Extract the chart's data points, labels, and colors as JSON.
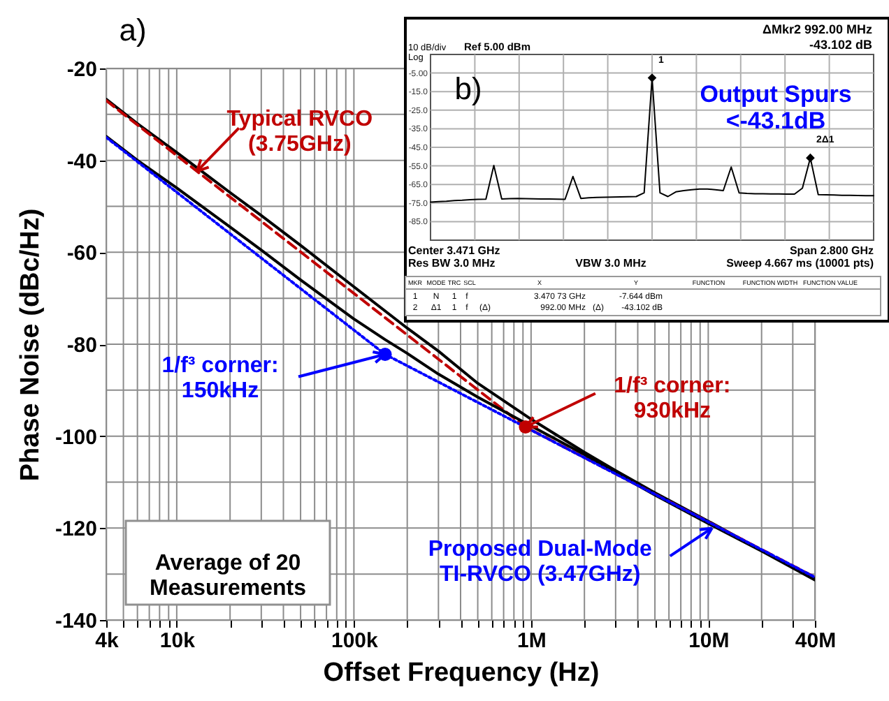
{
  "chart_data": [
    {
      "type": "line",
      "xlabel": "Offset Frequency (Hz)",
      "ylabel": "Phase Noise (dBc/Hz)",
      "log": "x",
      "grid": true,
      "xlim": [
        4000,
        40000000
      ],
      "xticks": [
        {
          "value": 4000,
          "label": "4k"
        },
        {
          "value": 5000,
          "label": null
        },
        {
          "value": 6000,
          "label": null
        },
        {
          "value": 7000,
          "label": null
        },
        {
          "value": 8000,
          "label": null
        },
        {
          "value": 9000,
          "label": null
        },
        {
          "value": 10000,
          "label": "10k"
        },
        {
          "value": 20000,
          "label": null
        },
        {
          "value": 30000,
          "label": null
        },
        {
          "value": 40000,
          "label": null
        },
        {
          "value": 50000,
          "label": null
        },
        {
          "value": 60000,
          "label": null
        },
        {
          "value": 70000,
          "label": null
        },
        {
          "value": 80000,
          "label": null
        },
        {
          "value": 90000,
          "label": null
        },
        {
          "value": 100000,
          "label": "100k"
        },
        {
          "value": 200000,
          "label": null
        },
        {
          "value": 300000,
          "label": null
        },
        {
          "value": 400000,
          "label": null
        },
        {
          "value": 500000,
          "label": null
        },
        {
          "value": 600000,
          "label": null
        },
        {
          "value": 700000,
          "label": null
        },
        {
          "value": 800000,
          "label": null
        },
        {
          "value": 900000,
          "label": null
        },
        {
          "value": 1000000,
          "label": "1M"
        },
        {
          "value": 2000000,
          "label": null
        },
        {
          "value": 3000000,
          "label": null
        },
        {
          "value": 4000000,
          "label": null
        },
        {
          "value": 5000000,
          "label": null
        },
        {
          "value": 6000000,
          "label": null
        },
        {
          "value": 7000000,
          "label": null
        },
        {
          "value": 8000000,
          "label": null
        },
        {
          "value": 9000000,
          "label": null
        },
        {
          "value": 10000000,
          "label": "10M"
        },
        {
          "value": 20000000,
          "label": null
        },
        {
          "value": 30000000,
          "label": null
        },
        {
          "value": 40000000,
          "label": "40M"
        }
      ],
      "ylim": [
        -140,
        -20
      ],
      "yticks": [
        -20,
        {
          "value": -30,
          "label": null
        },
        -40,
        {
          "value": -50,
          "label": null
        },
        -60,
        {
          "value": -70,
          "label": null
        },
        -80,
        {
          "value": -90,
          "label": null
        },
        -100,
        {
          "value": -110,
          "label": null
        },
        -120,
        {
          "value": -130,
          "label": null
        },
        -140
      ],
      "series": [
        {
          "color": "#000000",
          "line_style": "solid",
          "x": [
            4000,
            6000,
            10000,
            20000,
            30000,
            50000,
            100000,
            200000,
            300000,
            500000,
            1000000,
            2000000,
            3000000,
            5000000,
            10000000,
            20000000,
            40000000
          ],
          "values": [
            -26.7,
            -32,
            -38.3,
            -47,
            -52,
            -58.5,
            -67.5,
            -76.5,
            -81.5,
            -88.5,
            -96.3,
            -103.5,
            -107.5,
            -112.3,
            -118.5,
            -124.8,
            -131
          ]
        },
        {
          "color": "#c00000",
          "line_style": "dashed",
          "x": [
            4000,
            930000,
            40000000
          ],
          "values": [
            -27,
            -98,
            -130.7
          ]
        },
        {
          "color": "#000000",
          "line_style": "solid",
          "x": [
            4000,
            6000,
            10000,
            20000,
            30000,
            50000,
            100000,
            150000,
            200000,
            300000,
            500000,
            1000000,
            2000000,
            3000000,
            5000000,
            10000000,
            20000000,
            40000000
          ],
          "values": [
            -34.8,
            -40,
            -46,
            -54.5,
            -59.5,
            -66,
            -74.5,
            -79,
            -82,
            -86.5,
            -91.5,
            -97.8,
            -104,
            -108,
            -112.8,
            -119,
            -125,
            -131.3
          ]
        },
        {
          "color": "#0000ff",
          "line_style": "dotted",
          "x": [
            4000,
            150000,
            40000000
          ],
          "values": [
            -35,
            -82.2,
            -130.7
          ]
        },
        {
          "type": "scatter",
          "marker": "circle",
          "color": "#c00000",
          "x": [
            930000
          ],
          "values": [
            -98
          ]
        },
        {
          "type": "scatter",
          "marker": "circle",
          "color": "#0000ff",
          "x": [
            150000
          ],
          "values": [
            -82.2
          ]
        }
      ],
      "annotations": [
        "a)",
        {
          "text": "Typical RVCO\n(3.75GHz)",
          "x": 13000,
          "y": -42.4
        },
        {
          "text": "1/f³ corner:\n150kHz",
          "x": 150000,
          "y": -82.2
        },
        {
          "text": "1/f³ corner:\n930kHz",
          "x": 930000,
          "y": -98
        },
        "Average of 20\nMeasurements",
        {
          "text": "Proposed Dual-Mode\nTI-RVCO (3.47GHz)",
          "x": 10500000,
          "y": -120
        }
      ]
    },
    {
      "type": "line",
      "tick_labels": "y",
      "grid": true,
      "categories": [
        null,
        null,
        null,
        null,
        null,
        null,
        null,
        null,
        null,
        null,
        null,
        null,
        null,
        null,
        null,
        null,
        null,
        null,
        null,
        null,
        null,
        null,
        null,
        null,
        null,
        null,
        null,
        null,
        null,
        null,
        null,
        null,
        null,
        null,
        null,
        null,
        null,
        null,
        null,
        null,
        null,
        null,
        null,
        null,
        null,
        null,
        null,
        null,
        null,
        null,
        null,
        null,
        null,
        null,
        null,
        null,
        null
      ],
      "ylim": [
        -95,
        5
      ],
      "yticks": [
        {
          "value": -5,
          "label": "-5.00"
        },
        {
          "value": -15,
          "label": "-15.0"
        },
        {
          "value": -25,
          "label": "-25.0"
        },
        {
          "value": -35,
          "label": "-35.0"
        },
        {
          "value": -45,
          "label": "-45.0"
        },
        {
          "value": -55,
          "label": "-55.0"
        },
        {
          "value": -65,
          "label": "-65.0"
        },
        {
          "value": -75,
          "label": "-75.0"
        },
        {
          "value": -85,
          "label": "-85.0"
        }
      ],
      "series": [
        {
          "color": "#000000",
          "line_style": "solid",
          "values": [
            -74.5,
            -74.2,
            -74,
            -73.7,
            -73.5,
            -73.2,
            -73,
            -72.9,
            -54.8,
            -72.8,
            -72.6,
            -72.5,
            -72.6,
            -72.7,
            -72.8,
            -72.8,
            -72.9,
            -73,
            -60.7,
            -72.5,
            -72.2,
            -72,
            -71.9,
            -71.8,
            -71.7,
            -71.6,
            -71.5,
            -69.5,
            -7.6,
            -69.5,
            -71.5,
            -69,
            -68.3,
            -67.8,
            -67.5,
            -67.5,
            -67.8,
            -68.3,
            -55.6,
            -69.5,
            -69.8,
            -70,
            -70,
            -70.1,
            -70.1,
            -70.2,
            -70.2,
            -67,
            -50.7,
            -70.5,
            -70.6,
            -70.7,
            -70.8,
            -70.8,
            -70.9,
            -71,
            -71
          ]
        },
        {
          "type": "scatter",
          "marker": "diamond",
          "color": "#000000",
          "values": [
            null,
            null,
            null,
            null,
            null,
            null,
            null,
            null,
            null,
            null,
            null,
            null,
            null,
            null,
            null,
            null,
            null,
            null,
            null,
            null,
            null,
            null,
            null,
            null,
            null,
            null,
            null,
            null,
            -7.6,
            null,
            null,
            null,
            null,
            null,
            null,
            null,
            null,
            null,
            null,
            null,
            null,
            null,
            null,
            null,
            null,
            null,
            null,
            null,
            -50.7,
            null,
            null,
            null,
            null,
            null,
            null,
            null,
            null
          ]
        }
      ],
      "annotations": [
        "10 dB/div",
        "Ref 5.00 dBm",
        "Log",
        "ΔMkr2 992.00 MHz",
        "-43.102 dB",
        "b)",
        "Output Spurs\n<-43.1dB",
        "Center 3.471 GHz",
        "Span 2.800 GHz",
        "Res BW 3.0 MHz",
        "VBW 3.0 MHz",
        "Sweep  4.667 ms (10001 pts)",
        "1",
        "2Δ1",
        "MKR",
        "MODE",
        "TRC",
        "SCL",
        "X",
        "Y",
        "FUNCTION",
        "FUNCTION WIDTH",
        "FUNCTION VALUE",
        "1",
        "N",
        "1",
        "f",
        "3.470 73 GHz",
        "-7.644 dBm",
        "2",
        "Δ1",
        "1",
        "f",
        "(Δ)",
        "992.00 MHz",
        "(Δ)",
        "-43.102 dB"
      ]
    }
  ]
}
